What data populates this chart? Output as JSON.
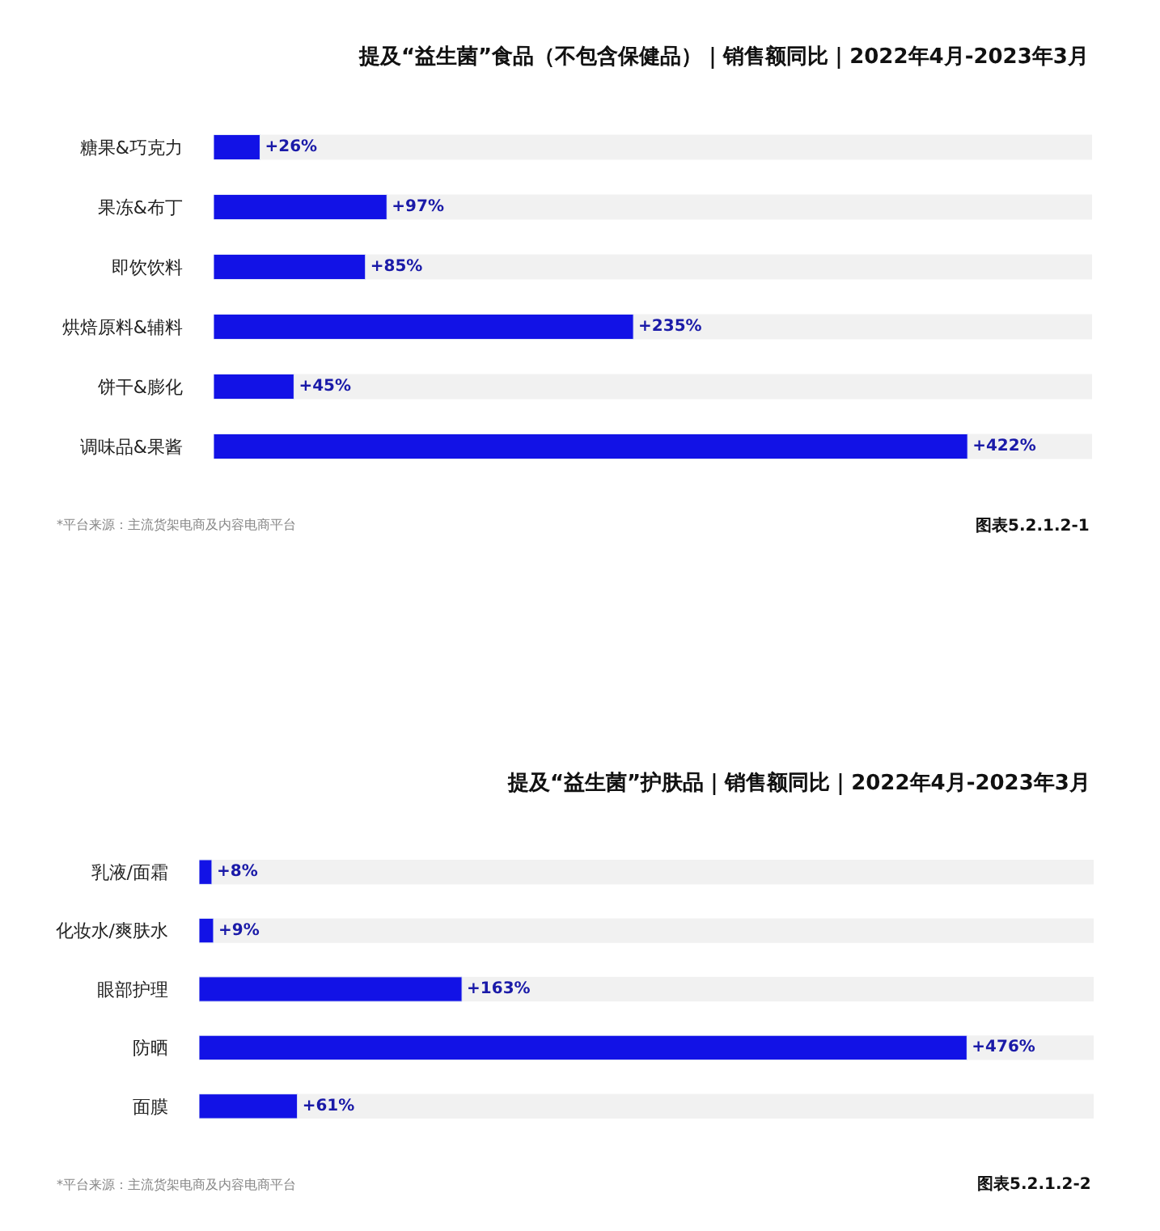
{
  "chart_data": [
    {
      "type": "bar",
      "orientation": "horizontal",
      "title": "提及“益生菌”食品（不包含保健品）｜销售额同比｜2022年4月-2023年3月",
      "categories": [
        "糖果&巧克力",
        "果冻&布丁",
        "即饮饮料",
        "烘焙原料&辅料",
        "饼干&膨化",
        "调味品&果酱"
      ],
      "values": [
        26,
        97,
        85,
        235,
        45,
        422
      ],
      "value_labels": [
        "+26%",
        "+97%",
        "+85%",
        "+235%",
        "+45%",
        "+422%"
      ],
      "color": "#1212e6",
      "tick_labels": "y",
      "annotations": [
        "*平台来源：主流货架电商及内容电商平台",
        "图表5.2.1.2-1"
      ]
    },
    {
      "type": "bar",
      "orientation": "horizontal",
      "title": "提及“益生菌”护肤品｜销售额同比｜2022年4月-2023年3月",
      "categories": [
        "乳液/面霜",
        "化妆水/爽肤水",
        "眼部护理",
        "防晒",
        "面膜"
      ],
      "values": [
        8,
        9,
        163,
        476,
        61
      ],
      "value_labels": [
        "+8%",
        "+9%",
        "+163%",
        "+476%",
        "+61%"
      ],
      "color": "#1212e6",
      "tick_labels": "y",
      "annotations": [
        "*平台来源：主流货架电商及内容电商平台",
        "图表5.2.1.2-2"
      ]
    }
  ]
}
